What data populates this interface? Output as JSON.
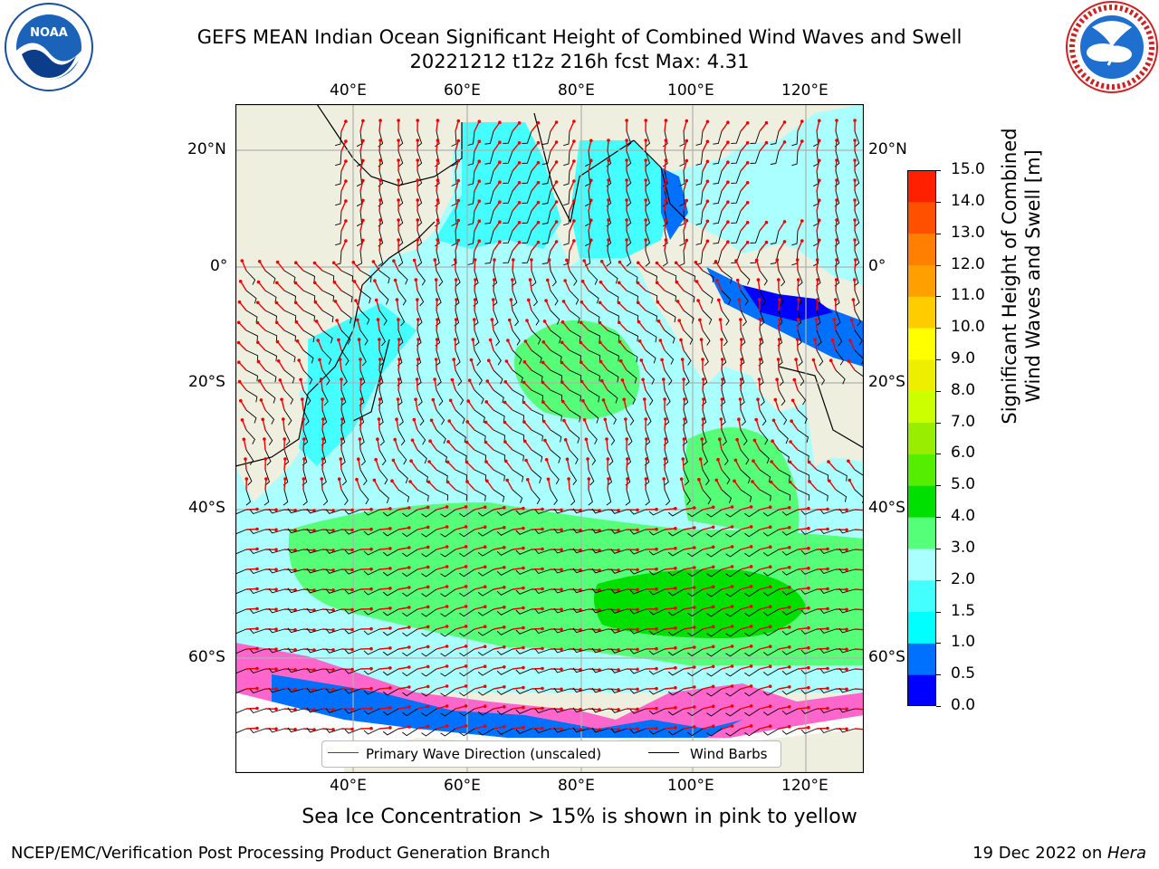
{
  "header": {
    "title": "GEFS MEAN Indian Ocean Significant Height of Combined Wind Waves and Swell",
    "subtitle": "20221212 t12z 216h fcst   Max: 4.31"
  },
  "logos": {
    "left": {
      "name": "noaa-logo",
      "text": "NOAA"
    },
    "right": {
      "name": "nws-logo"
    }
  },
  "map": {
    "lon_ticks": [
      "40°E",
      "60°E",
      "80°E",
      "100°E",
      "120°E"
    ],
    "lat_ticks_left": [
      "20°N",
      "0°",
      "20°S",
      "40°S",
      "60°S"
    ],
    "lat_ticks_right": [
      "20°N",
      "0°",
      "20°S",
      "40°S",
      "60°S"
    ],
    "lon_range": [
      20,
      130
    ],
    "lat_range": [
      -77,
      27
    ],
    "colors": {
      "land": "#efefdf",
      "ice_pink": "#ff66cc",
      "wave_arrow": "#ee0000",
      "wind_barb": "#000000"
    }
  },
  "legend": {
    "wave_label": "Primary Wave Direction (unscaled)",
    "wind_label": "Wind Barbs"
  },
  "colorbar": {
    "title_line1": "Significant Height of Combined",
    "title_line2": "Wind Waves and Swell [m]",
    "ticks": [
      "0.0",
      "0.5",
      "1.0",
      "1.5",
      "2.0",
      "3.0",
      "4.0",
      "5.0",
      "6.0",
      "7.0",
      "8.0",
      "9.0",
      "10.0",
      "11.0",
      "12.0",
      "13.0",
      "14.0",
      "15.0"
    ],
    "colors": [
      "#0000ff",
      "#0070ff",
      "#00ffff",
      "#44ffff",
      "#aaffff",
      "#55ff77",
      "#00e000",
      "#55ee00",
      "#99ee00",
      "#ccff00",
      "#eeee00",
      "#ffff00",
      "#ffcc00",
      "#ffa000",
      "#ff8000",
      "#ff5000",
      "#ff2000"
    ]
  },
  "caption": "Sea Ice Concentration > 15% is shown in pink to yellow",
  "footer": {
    "left": "NCEP/EMC/Verification Post Processing Product Generation Branch",
    "right_prefix": "19 Dec 2022 on ",
    "right_machine": "Hera"
  }
}
